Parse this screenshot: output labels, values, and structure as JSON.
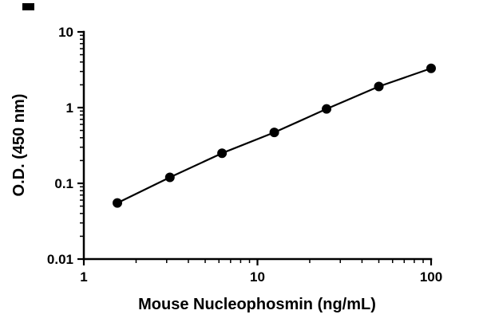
{
  "chart_data": {
    "type": "line",
    "title": "",
    "xlabel": "Mouse Nucleophosmin (ng/mL)",
    "ylabel": "O.D. (450 nm)",
    "xscale": "log",
    "yscale": "log",
    "xlim": [
      1,
      100
    ],
    "ylim": [
      0.01,
      10
    ],
    "grid": false,
    "legend": null,
    "x": [
      1.56,
      3.13,
      6.25,
      12.5,
      25,
      50,
      100
    ],
    "y": [
      0.055,
      0.12,
      0.25,
      0.47,
      0.96,
      1.9,
      3.3
    ],
    "x_tick_values": [
      1,
      10,
      100
    ],
    "x_tick_labels": [
      "1",
      "10",
      "100"
    ],
    "y_tick_values": [
      0.01,
      0.1,
      1,
      10
    ],
    "y_tick_labels": [
      "0.01",
      "0.1",
      "1",
      "10"
    ],
    "marker": "circle",
    "marker_color": "#000000",
    "line_color": "#000000",
    "axis_color": "#000000",
    "background": "#ffffff"
  }
}
